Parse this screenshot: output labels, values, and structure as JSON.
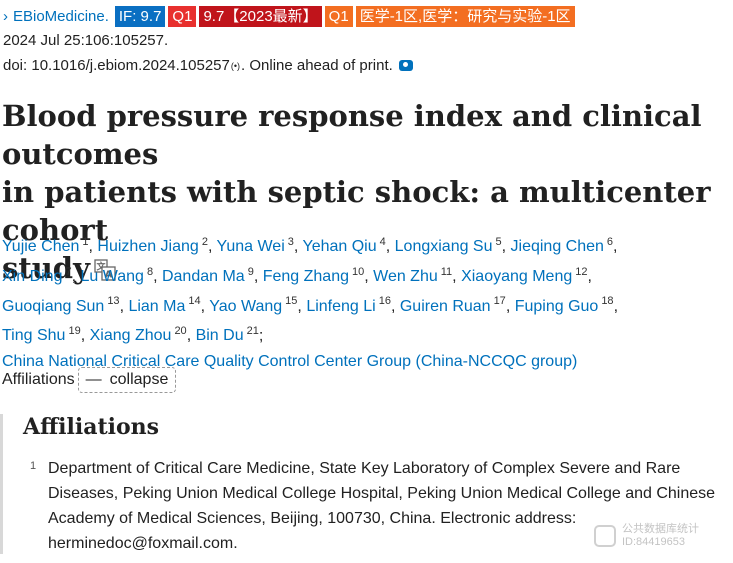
{
  "header": {
    "chevron": "›",
    "journal": "EBioMedicine.",
    "badges": {
      "if": "IF: 9.7",
      "q1": "Q1",
      "if_2023": "9.7【2023最新】",
      "q1b": "Q1",
      "category": "医学-1区,医学：研究与实验-1区"
    },
    "date_line": "2024 Jul 25:106:105257.",
    "doi_text": "doi: 10.1016/j.ebiom.2024.105257",
    "doi_mark": "(•)",
    "doi_suffix": ". Online ahead of print."
  },
  "article": {
    "title_line1": "Blood pressure response index and clinical outcomes",
    "title_line2": "in patients with septic shock: a multicenter cohort",
    "title_line3": "study"
  },
  "authors": [
    {
      "name": "Yujie Chen",
      "sup": "1"
    },
    {
      "name": "Huizhen Jiang",
      "sup": "2"
    },
    {
      "name": "Yuna Wei",
      "sup": "3"
    },
    {
      "name": "Yehan Qiu",
      "sup": "4"
    },
    {
      "name": "Longxiang Su",
      "sup": "5"
    },
    {
      "name": "Jieqing Chen",
      "sup": "6"
    },
    {
      "name": "Xin Ding",
      "sup": "7"
    },
    {
      "name": "Lu Wang",
      "sup": "8"
    },
    {
      "name": "Dandan Ma",
      "sup": "9"
    },
    {
      "name": "Feng Zhang",
      "sup": "10"
    },
    {
      "name": "Wen Zhu",
      "sup": "11"
    },
    {
      "name": "Xiaoyang Meng",
      "sup": "12"
    },
    {
      "name": "Guoqiang Sun",
      "sup": "13"
    },
    {
      "name": "Lian Ma",
      "sup": "14"
    },
    {
      "name": "Yao Wang",
      "sup": "15"
    },
    {
      "name": "Linfeng Li",
      "sup": "16"
    },
    {
      "name": "Guiren Ruan",
      "sup": "17"
    },
    {
      "name": "Fuping Guo",
      "sup": "18"
    },
    {
      "name": "Ting Shu",
      "sup": "19"
    },
    {
      "name": "Xiang Zhou",
      "sup": "20"
    },
    {
      "name": "Bin Du",
      "sup": "21"
    }
  ],
  "group": "China National Critical Care Quality Control Center Group (China-NCCQC group)",
  "affiliations_toggle": {
    "label": "Affiliations",
    "button_dash": "—",
    "button_text": "collapse"
  },
  "affiliations": {
    "heading": "Affiliations",
    "items": [
      {
        "num": "1",
        "text": "Department of Critical Care Medicine, State Key Laboratory of Complex Severe and Rare Diseases, Peking Union Medical College Hospital, Peking Union Medical College and Chinese Academy of Medical Sciences, Beijing, 100730, China. Electronic address: herminedoc@foxmail.com."
      }
    ]
  },
  "watermark": {
    "line1": "公共数据库统计",
    "line2": "ID:84419653"
  }
}
